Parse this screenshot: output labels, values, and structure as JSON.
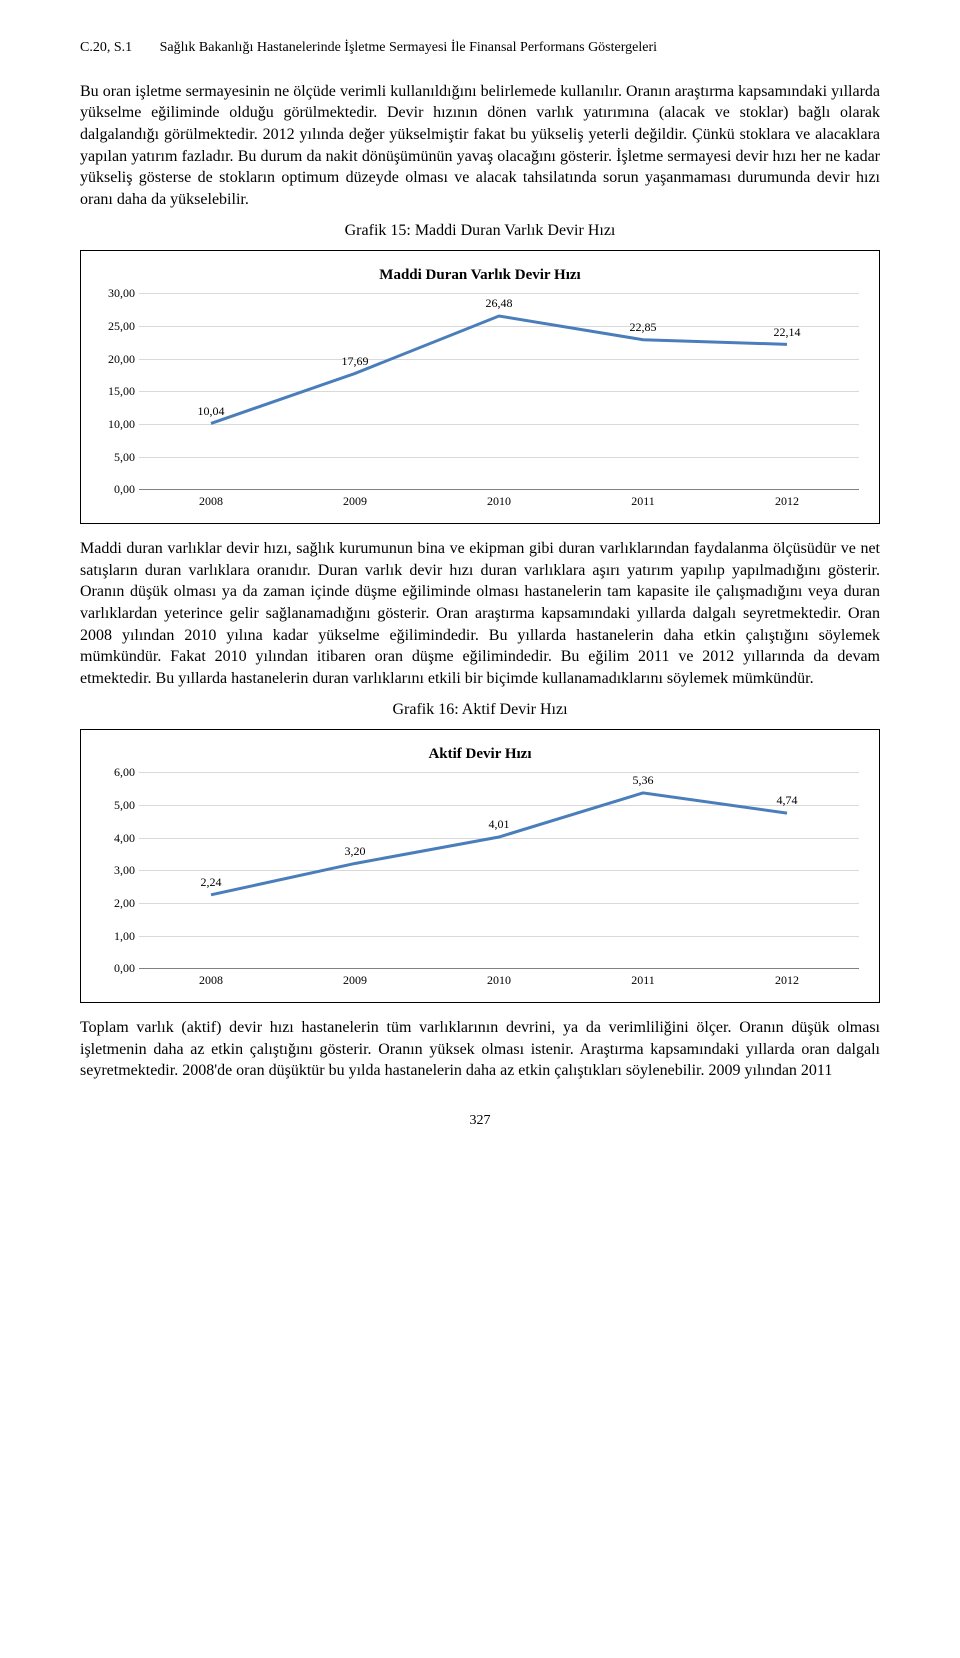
{
  "header": {
    "issue": "C.20, S.1",
    "running_title": "Sağlık Bakanlığı Hastanelerinde İşletme Sermayesi İle Finansal Performans Göstergeleri"
  },
  "paragraphs": {
    "p1": "Bu oran işletme sermayesinin ne ölçüde verimli kullanıldığını belirlemede kullanılır. Oranın araştırma kapsamındaki yıllarda yükselme eğiliminde olduğu görülmektedir. Devir hızının dönen varlık yatırımına (alacak ve stoklar) bağlı olarak dalgalandığı görülmektedir. 2012 yılında değer yükselmiştir fakat bu yükseliş yeterli değildir. Çünkü stoklara ve alacaklara yapılan yatırım fazladır. Bu durum da nakit dönüşümünün yavaş olacağını gösterir. İşletme sermayesi devir hızı her ne kadar yükseliş gösterse de stokların optimum düzeyde olması ve alacak tahsilatında sorun yaşanmaması durumunda devir hızı oranı daha da yükselebilir.",
    "p2": "Maddi duran varlıklar devir hızı, sağlık kurumunun bina ve ekipman gibi duran varlıklarından faydalanma ölçüsüdür ve net satışların duran varlıklara oranıdır. Duran varlık devir hızı duran varlıklara aşırı yatırım yapılıp yapılmadığını gösterir. Oranın düşük olması ya da zaman içinde düşme eğiliminde olması hastanelerin tam kapasite ile çalışmadığını veya duran varlıklardan yeterince gelir sağlanamadığını gösterir. Oran araştırma kapsamındaki yıllarda dalgalı seyretmektedir. Oran 2008 yılından 2010 yılına kadar yükselme eğilimindedir. Bu yıllarda hastanelerin daha etkin çalıştığını söylemek mümkündür. Fakat 2010 yılından itibaren oran düşme eğilimindedir. Bu eğilim 2011 ve 2012 yıllarında da devam etmektedir. Bu yıllarda hastanelerin duran varlıklarını etkili bir biçimde kullanamadıklarını söylemek mümkündür.",
    "p3": "Toplam varlık (aktif) devir hızı hastanelerin tüm varlıklarının devrini, ya da verimliliğini ölçer. Oranın düşük olması işletmenin daha az etkin çalıştığını gösterir. Oranın yüksek olması istenir. Araştırma kapsamındaki yıllarda oran dalgalı seyretmektedir. 2008'de oran düşüktür bu yılda hastanelerin daha az etkin çalıştıkları söylenebilir. 2009 yılından 2011"
  },
  "chart15": {
    "caption": "Grafik 15: Maddi Duran Varlık Devir Hızı",
    "inner_title": "Maddi Duran Varlık Devir Hızı",
    "type": "line",
    "categories": [
      "2008",
      "2009",
      "2010",
      "2011",
      "2012"
    ],
    "values": [
      10.04,
      17.69,
      26.48,
      22.85,
      22.14
    ],
    "value_labels": [
      "10,04",
      "17,69",
      "26,48",
      "22,85",
      "22,14"
    ],
    "ylim": [
      0,
      30
    ],
    "ytick_step": 5,
    "ytick_labels": [
      "0,00",
      "5,00",
      "10,00",
      "15,00",
      "20,00",
      "25,00",
      "30,00"
    ],
    "line_color": "#4a7ebb",
    "line_width": 3,
    "grid_color": "#d9d9d9",
    "axis_color": "#808080",
    "background_color": "#ffffff",
    "label_fontsize": 12,
    "title_fontsize": 15
  },
  "chart16": {
    "caption": "Grafik 16: Aktif Devir Hızı",
    "inner_title": "Aktif Devir Hızı",
    "type": "line",
    "categories": [
      "2008",
      "2009",
      "2010",
      "2011",
      "2012"
    ],
    "values": [
      2.24,
      3.2,
      4.01,
      5.36,
      4.74
    ],
    "value_labels": [
      "2,24",
      "3,20",
      "4,01",
      "5,36",
      "4,74"
    ],
    "ylim": [
      0,
      6
    ],
    "ytick_step": 1,
    "ytick_labels": [
      "0,00",
      "1,00",
      "2,00",
      "3,00",
      "4,00",
      "5,00",
      "6,00"
    ],
    "line_color": "#4a7ebb",
    "line_width": 3,
    "grid_color": "#d9d9d9",
    "axis_color": "#808080",
    "background_color": "#ffffff",
    "label_fontsize": 12,
    "title_fontsize": 15
  },
  "page_number": "327"
}
